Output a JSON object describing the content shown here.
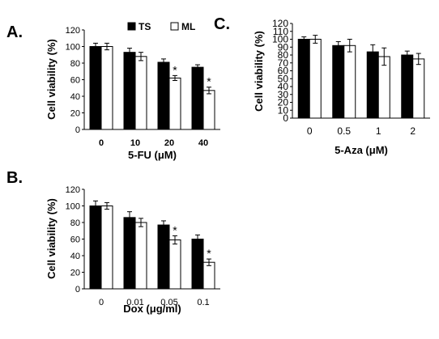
{
  "chart_data": [
    {
      "type": "bar",
      "panel_label": "A.",
      "categories": [
        "0",
        "10",
        "20",
        "40"
      ],
      "xlabel": "5-FU (μM)",
      "ylabel": "Cell viability (%)",
      "ylim": [
        0,
        120
      ],
      "yticks": [
        0,
        20,
        40,
        60,
        80,
        100,
        120
      ],
      "legend": "top-right",
      "series": [
        {
          "name": "TS",
          "color": "#000000",
          "values": [
            100,
            93,
            81,
            75
          ],
          "errors": [
            4,
            5,
            4,
            3
          ],
          "sig": [
            "",
            "",
            "",
            ""
          ]
        },
        {
          "name": "ML",
          "color": "#ffffff",
          "values": [
            100,
            88,
            62,
            47
          ],
          "errors": [
            4,
            5,
            3,
            4
          ],
          "sig": [
            "",
            "",
            "*",
            "*"
          ]
        }
      ]
    },
    {
      "type": "bar",
      "panel_label": "B.",
      "categories": [
        "0",
        "0.01",
        "0.05",
        "0.1"
      ],
      "xlabel": "Dox (μg/ml)",
      "ylabel": "Cell viability (%)",
      "ylim": [
        0,
        120
      ],
      "yticks": [
        0,
        20,
        40,
        60,
        80,
        100,
        120
      ],
      "series": [
        {
          "name": "TS",
          "color": "#000000",
          "values": [
            100,
            86,
            77,
            60
          ],
          "errors": [
            6,
            7,
            5,
            5
          ],
          "sig": [
            "",
            "",
            "",
            ""
          ]
        },
        {
          "name": "ML",
          "color": "#ffffff",
          "values": [
            100,
            80,
            59,
            32
          ],
          "errors": [
            4,
            5,
            5,
            4
          ],
          "sig": [
            "",
            "",
            "*",
            "*"
          ]
        }
      ]
    },
    {
      "type": "bar",
      "panel_label": "C.",
      "categories": [
        "0",
        "0.5",
        "1",
        "2"
      ],
      "xlabel": "5-Aza (μM)",
      "ylabel": "Cell viability (%)",
      "ylim": [
        0,
        120
      ],
      "yticks": [
        0,
        10,
        20,
        30,
        40,
        50,
        60,
        70,
        80,
        90,
        100,
        110,
        120
      ],
      "series": [
        {
          "name": "TS",
          "color": "#000000",
          "values": [
            100,
            92,
            84,
            80
          ],
          "errors": [
            3,
            5,
            9,
            5
          ],
          "sig": [
            "",
            "",
            "",
            ""
          ]
        },
        {
          "name": "ML",
          "color": "#ffffff",
          "values": [
            100,
            92,
            78,
            75
          ],
          "errors": [
            5,
            8,
            11,
            7
          ],
          "sig": [
            "",
            "",
            "",
            ""
          ]
        }
      ]
    }
  ]
}
